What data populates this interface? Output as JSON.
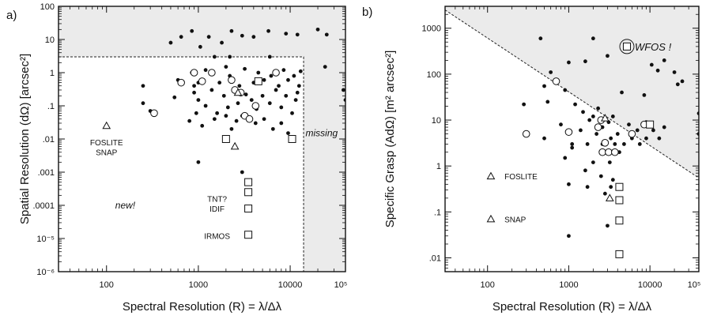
{
  "chart_data": [
    {
      "type": "scatter",
      "panel_label": "a)",
      "xlabel": "Spectral Resolution (R) = λ/Δλ",
      "ylabel": "Spatial Resolution (dΩ) [arcsec²]",
      "xscale": "log",
      "yscale": "log",
      "xlim": [
        30,
        40000
      ],
      "ylim": [
        1e-06,
        100
      ],
      "x_ticks": [
        {
          "v": 100,
          "label": "100"
        },
        {
          "v": 1000,
          "label": "1000"
        },
        {
          "v": 10000,
          "label": "10000"
        },
        {
          "v": 100000,
          "label": "10⁵"
        }
      ],
      "y_ticks": [
        {
          "v": 100,
          "label": "100"
        },
        {
          "v": 10,
          "label": "10"
        },
        {
          "v": 1,
          "label": "1"
        },
        {
          "v": 0.1,
          "label": ".1"
        },
        {
          "v": 0.01,
          "label": ".01"
        },
        {
          "v": 0.001,
          "label": ".001"
        },
        {
          "v": 0.0001,
          "label": ".0001"
        },
        {
          "v": 1e-05,
          "label": "10⁻⁵"
        },
        {
          "v": 1e-06,
          "label": "10⁻⁶"
        }
      ],
      "shaded_region": {
        "x_min": 14000,
        "y_min": 3
      },
      "annotations": [
        {
          "text": "missing",
          "x": 22000,
          "y": 0.012
        },
        {
          "text": "new!",
          "x": 160,
          "y": 8e-05
        }
      ],
      "labels": [
        {
          "text": "FOSLITE",
          "x": 100,
          "y": 0.008
        },
        {
          "text": "SNAP",
          "x": 100,
          "y": 0.004
        },
        {
          "text": "TNT?",
          "x": 1600,
          "y": 0.00016
        },
        {
          "text": "IDIF",
          "x": 1600,
          "y": 8e-05
        },
        {
          "text": "IRMOS",
          "x": 1600,
          "y": 1.2e-05
        }
      ],
      "series": [
        {
          "marker": "filled-circle",
          "points": [
            [
              650,
              12
            ],
            [
              850,
              18
            ],
            [
              1050,
              6
            ],
            [
              1300,
              12
            ],
            [
              500,
              8
            ],
            [
              1800,
              8
            ],
            [
              2300,
              18
            ],
            [
              3000,
              13
            ],
            [
              4000,
              12
            ],
            [
              5800,
              18
            ],
            [
              9000,
              15
            ],
            [
              12000,
              14
            ],
            [
              20000,
              20
            ],
            [
              25000,
              14
            ],
            [
              1500,
              3
            ],
            [
              2200,
              3
            ],
            [
              6000,
              3
            ],
            [
              250,
              0.4
            ],
            [
              600,
              0.6
            ],
            [
              850,
              1
            ],
            [
              900,
              0.4
            ],
            [
              1000,
              0.5
            ],
            [
              1200,
              1.2
            ],
            [
              1400,
              0.9
            ],
            [
              1700,
              0.5
            ],
            [
              2000,
              1.5
            ],
            [
              2200,
              0.8
            ],
            [
              2800,
              0.4
            ],
            [
              3200,
              1.3
            ],
            [
              4000,
              0.5
            ],
            [
              4500,
              1
            ],
            [
              5200,
              0.6
            ],
            [
              6200,
              0.8
            ],
            [
              7500,
              0.4
            ],
            [
              8500,
              1.2
            ],
            [
              9500,
              0.6
            ],
            [
              11000,
              0.8
            ],
            [
              12500,
              0.4
            ],
            [
              13000,
              1.1
            ],
            [
              24000,
              1.5
            ],
            [
              250,
              0.12
            ],
            [
              300,
              0.07
            ],
            [
              550,
              0.18
            ],
            [
              900,
              0.25
            ],
            [
              1000,
              0.15
            ],
            [
              1200,
              0.1
            ],
            [
              1400,
              0.3
            ],
            [
              1600,
              0.06
            ],
            [
              1900,
              0.2
            ],
            [
              2100,
              0.09
            ],
            [
              2400,
              0.3
            ],
            [
              2700,
              0.12
            ],
            [
              3000,
              0.05
            ],
            [
              3300,
              0.22
            ],
            [
              3800,
              0.15
            ],
            [
              4300,
              0.08
            ],
            [
              5000,
              0.2
            ],
            [
              6000,
              0.12
            ],
            [
              7000,
              0.3
            ],
            [
              8000,
              0.09
            ],
            [
              9000,
              0.2
            ],
            [
              10500,
              0.06
            ],
            [
              11500,
              0.15
            ],
            [
              12000,
              0.25
            ],
            [
              38000,
              0.3
            ],
            [
              40000,
              0.15
            ],
            [
              800,
              0.035
            ],
            [
              950,
              0.06
            ],
            [
              1100,
              0.025
            ],
            [
              1500,
              0.04
            ],
            [
              2000,
              0.05
            ],
            [
              2300,
              0.02
            ],
            [
              2600,
              0.035
            ],
            [
              4200,
              0.03
            ],
            [
              5200,
              0.04
            ],
            [
              6500,
              0.02
            ],
            [
              8000,
              0.03
            ],
            [
              9500,
              0.015
            ],
            [
              1000,
              0.002
            ],
            [
              3000,
              0.001
            ]
          ]
        },
        {
          "marker": "open-circle",
          "points": [
            [
              330,
              0.06
            ],
            [
              650,
              0.5
            ],
            [
              900,
              1
            ],
            [
              1100,
              0.55
            ],
            [
              1400,
              1
            ],
            [
              2300,
              0.6
            ],
            [
              2500,
              0.3
            ],
            [
              2900,
              0.25
            ],
            [
              3200,
              0.05
            ],
            [
              3600,
              0.04
            ],
            [
              4200,
              0.1
            ],
            [
              7000,
              1
            ]
          ]
        },
        {
          "marker": "open-square",
          "points": [
            [
              2000,
              0.01
            ],
            [
              4500,
              0.55
            ],
            [
              10500,
              0.01
            ],
            [
              3500,
              0.0005
            ],
            [
              3500,
              0.00025
            ],
            [
              3500,
              8e-05
            ],
            [
              3500,
              1.3e-05
            ]
          ]
        },
        {
          "marker": "open-triangle",
          "points": [
            [
              2700,
              0.25
            ],
            [
              2500,
              0.006
            ],
            [
              100,
              0.025
            ]
          ]
        }
      ]
    },
    {
      "type": "scatter",
      "panel_label": "b)",
      "xlabel": "Spectral Resolution (R) = λ/Δλ",
      "ylabel": "Specific Grasp (AdΩ) [m² arcsec²]",
      "xscale": "log",
      "yscale": "log",
      "xlim": [
        30,
        40000
      ],
      "ylim": [
        0.005,
        3000
      ],
      "x_ticks": [
        {
          "v": 100,
          "label": "100"
        },
        {
          "v": 1000,
          "label": "1000"
        },
        {
          "v": 10000,
          "label": "10000"
        },
        {
          "v": 100000,
          "label": "10⁵"
        }
      ],
      "y_ticks": [
        {
          "v": 1000,
          "label": "1000"
        },
        {
          "v": 100,
          "label": "100"
        },
        {
          "v": 10,
          "label": "10"
        },
        {
          "v": 1,
          "label": "1"
        },
        {
          "v": 0.1,
          "label": ".1"
        },
        {
          "v": 0.01,
          "label": ".01"
        }
      ],
      "diagonal_line": {
        "x1": 30,
        "y1": 2500,
        "x2": 40000,
        "y2": 0.55
      },
      "labels": [
        {
          "text": "WFOS !",
          "x": 5200,
          "y": 400
        },
        {
          "text": "FOSLITE",
          "x": 135,
          "y": 0.6
        },
        {
          "text": "SNAP",
          "x": 135,
          "y": 0.07
        }
      ],
      "series": [
        {
          "marker": "filled-circle",
          "points": [
            [
              450,
              600
            ],
            [
              2000,
              600
            ],
            [
              3000,
              250
            ],
            [
              600,
              110
            ],
            [
              1000,
              180
            ],
            [
              1600,
              190
            ],
            [
              10500,
              160
            ],
            [
              12500,
              120
            ],
            [
              15000,
              200
            ],
            [
              20000,
              110
            ],
            [
              22000,
              60
            ],
            [
              25000,
              70
            ],
            [
              4500,
              40
            ],
            [
              8500,
              35
            ],
            [
              700,
              70
            ],
            [
              500,
              55
            ],
            [
              900,
              45
            ],
            [
              280,
              22
            ],
            [
              550,
              25
            ],
            [
              1200,
              22
            ],
            [
              1500,
              15
            ],
            [
              1800,
              10
            ],
            [
              2000,
              12
            ],
            [
              2300,
              18
            ],
            [
              2600,
              7
            ],
            [
              3100,
              9
            ],
            [
              3500,
              12
            ],
            [
              4000,
              5
            ],
            [
              5500,
              8
            ],
            [
              7000,
              6
            ],
            [
              9000,
              9
            ],
            [
              11000,
              6
            ],
            [
              13000,
              4
            ],
            [
              15000,
              7
            ],
            [
              42000,
              14
            ],
            [
              45000,
              5
            ],
            [
              300,
              5
            ],
            [
              500,
              4
            ],
            [
              800,
              8
            ],
            [
              1100,
              3
            ],
            [
              1400,
              6
            ],
            [
              1700,
              3
            ],
            [
              2200,
              5
            ],
            [
              2600,
              3
            ],
            [
              3000,
              2
            ],
            [
              3300,
              4
            ],
            [
              3700,
              3
            ],
            [
              4200,
              2
            ],
            [
              4800,
              3
            ],
            [
              6000,
              4
            ],
            [
              7500,
              3
            ],
            [
              9000,
              4
            ],
            [
              900,
              1.5
            ],
            [
              1100,
              2.5
            ],
            [
              1600,
              0.8
            ],
            [
              2000,
              1.2
            ],
            [
              2500,
              0.6
            ],
            [
              3200,
              1.2
            ],
            [
              3500,
              0.5
            ],
            [
              1000,
              0.4
            ],
            [
              1700,
              0.35
            ],
            [
              2800,
              0.25
            ],
            [
              3300,
              0.35
            ],
            [
              3000,
              0.05
            ],
            [
              1000,
              0.03
            ]
          ]
        },
        {
          "marker": "open-circle",
          "points": [
            [
              300,
              5
            ],
            [
              700,
              70
            ],
            [
              1000,
              5.5
            ],
            [
              2300,
              7
            ],
            [
              2800,
              3.2
            ],
            [
              2600,
              2
            ],
            [
              3100,
              2
            ],
            [
              3700,
              2
            ],
            [
              6000,
              5
            ],
            [
              2500,
              10
            ],
            [
              8500,
              8
            ]
          ]
        },
        {
          "marker": "open-square",
          "points": [
            [
              5200,
              400
            ],
            [
              4200,
              0.35
            ],
            [
              4200,
              0.18
            ],
            [
              4200,
              0.065
            ],
            [
              4200,
              0.012
            ],
            [
              10000,
              8
            ]
          ]
        },
        {
          "marker": "open-triangle",
          "points": [
            [
              2800,
              11
            ],
            [
              3200,
              0.2
            ],
            [
              110,
              0.6
            ],
            [
              110,
              0.07
            ]
          ]
        }
      ]
    }
  ]
}
